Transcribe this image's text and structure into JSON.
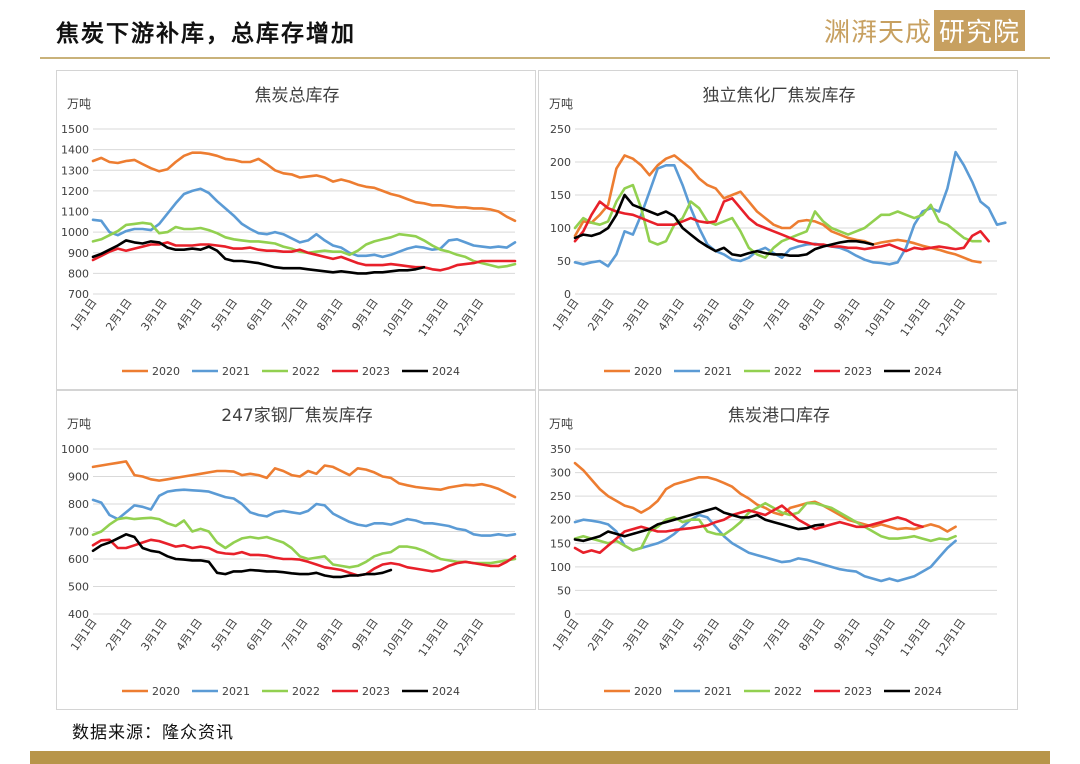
{
  "page": {
    "title": "焦炭下游补库，总库存增加",
    "logo_text": "渊湃天成",
    "logo_box": "研究院",
    "source": "数据来源：隆众资讯"
  },
  "series_colors": {
    "2020": "#ED7D31",
    "2021": "#5B9BD5",
    "2022": "#92D050",
    "2023": "#E8202A",
    "2024": "#000000"
  },
  "chart_data": [
    {
      "type": "line",
      "title": "焦炭总库存",
      "unit": "万吨",
      "ylim": [
        700,
        1500
      ],
      "yticks": [
        700,
        800,
        900,
        1000,
        1100,
        1200,
        1300,
        1400,
        1500
      ],
      "x_labels": [
        "1月1日",
        "2月1日",
        "3月1日",
        "4月1日",
        "5月1日",
        "6月1日",
        "7月1日",
        "8月1日",
        "9月1日",
        "10月1日",
        "11月1日",
        "12月1日"
      ],
      "series": [
        {
          "name": "2020",
          "values": [
            1345,
            1360,
            1340,
            1335,
            1345,
            1350,
            1330,
            1310,
            1295,
            1305,
            1340,
            1370,
            1385,
            1385,
            1380,
            1370,
            1355,
            1350,
            1340,
            1340,
            1355,
            1330,
            1300,
            1285,
            1280,
            1265,
            1270,
            1275,
            1265,
            1245,
            1255,
            1245,
            1230,
            1220,
            1215,
            1200,
            1185,
            1175,
            1160,
            1145,
            1140,
            1130,
            1130,
            1125,
            1120,
            1120,
            1115,
            1115,
            1110,
            1100,
            1075,
            1055
          ]
        },
        {
          "name": "2021",
          "values": [
            1060,
            1055,
            1000,
            985,
            1005,
            1015,
            1015,
            1010,
            1040,
            1090,
            1140,
            1185,
            1200,
            1210,
            1190,
            1150,
            1115,
            1080,
            1040,
            1015,
            995,
            990,
            1000,
            990,
            970,
            950,
            960,
            990,
            960,
            935,
            925,
            900,
            885,
            885,
            890,
            880,
            890,
            905,
            920,
            930,
            925,
            915,
            920,
            960,
            965,
            950,
            935,
            930,
            925,
            930,
            925,
            950
          ]
        },
        {
          "name": "2022",
          "values": [
            955,
            965,
            985,
            1005,
            1035,
            1040,
            1045,
            1040,
            995,
            1000,
            1025,
            1015,
            1015,
            1020,
            1010,
            995,
            975,
            965,
            960,
            955,
            955,
            950,
            945,
            930,
            920,
            905,
            900,
            905,
            910,
            905,
            905,
            890,
            910,
            940,
            955,
            965,
            975,
            990,
            985,
            980,
            960,
            935,
            915,
            905,
            890,
            880,
            860,
            850,
            840,
            830,
            835,
            845
          ]
        },
        {
          "name": "2023",
          "values": [
            865,
            885,
            905,
            920,
            910,
            920,
            930,
            940,
            940,
            950,
            935,
            935,
            935,
            940,
            940,
            935,
            930,
            920,
            920,
            925,
            915,
            910,
            910,
            905,
            905,
            915,
            900,
            890,
            880,
            870,
            880,
            865,
            850,
            840,
            840,
            840,
            845,
            840,
            835,
            830,
            830,
            820,
            815,
            825,
            840,
            845,
            850,
            860,
            860,
            860,
            860,
            860
          ]
        },
        {
          "name": "2024",
          "values": [
            880,
            895,
            915,
            935,
            960,
            950,
            945,
            955,
            950,
            925,
            915,
            915,
            920,
            915,
            930,
            910,
            870,
            860,
            860,
            855,
            850,
            840,
            830,
            825,
            825,
            825,
            820,
            815,
            810,
            805,
            810,
            805,
            800,
            800,
            805,
            805,
            810,
            815,
            815,
            820,
            830
          ]
        }
      ]
    },
    {
      "type": "line",
      "title": "独立焦化厂焦炭库存",
      "unit": "万吨",
      "ylim": [
        0,
        250
      ],
      "yticks": [
        0,
        50,
        100,
        150,
        200,
        250
      ],
      "x_labels": [
        "1月1日",
        "2月1日",
        "3月1日",
        "4月1日",
        "5月1日",
        "6月1日",
        "7月1日",
        "8月1日",
        "9月1日",
        "10月1日",
        "11月1日",
        "12月1日"
      ],
      "series": [
        {
          "name": "2020",
          "values": [
            88,
            110,
            108,
            120,
            135,
            190,
            210,
            205,
            195,
            180,
            195,
            205,
            210,
            200,
            190,
            175,
            165,
            160,
            145,
            150,
            155,
            140,
            125,
            115,
            105,
            100,
            100,
            110,
            112,
            110,
            105,
            95,
            90,
            85,
            82,
            80,
            75,
            78,
            80,
            82,
            80,
            77,
            73,
            70,
            67,
            63,
            60,
            55,
            50,
            48
          ]
        },
        {
          "name": "2021",
          "values": [
            48,
            45,
            48,
            50,
            42,
            60,
            95,
            90,
            120,
            155,
            190,
            195,
            195,
            165,
            130,
            100,
            75,
            65,
            60,
            52,
            50,
            55,
            65,
            70,
            62,
            55,
            68,
            72,
            75,
            76,
            74,
            72,
            70,
            65,
            58,
            52,
            48,
            47,
            45,
            48,
            70,
            105,
            125,
            130,
            125,
            160,
            215,
            195,
            170,
            140,
            130,
            105,
            108
          ]
        },
        {
          "name": "2022",
          "values": [
            100,
            115,
            108,
            105,
            110,
            140,
            160,
            165,
            130,
            80,
            75,
            80,
            105,
            115,
            140,
            130,
            110,
            105,
            110,
            115,
            95,
            70,
            60,
            55,
            70,
            80,
            85,
            90,
            95,
            125,
            110,
            100,
            95,
            90,
            95,
            100,
            110,
            120,
            120,
            125,
            120,
            115,
            120,
            135,
            110,
            105,
            95,
            85,
            80,
            80
          ]
        },
        {
          "name": "2023",
          "values": [
            80,
            95,
            120,
            140,
            130,
            125,
            122,
            120,
            115,
            110,
            105,
            105,
            105,
            110,
            115,
            110,
            108,
            110,
            140,
            145,
            130,
            115,
            105,
            100,
            95,
            90,
            85,
            80,
            78,
            75,
            75,
            72,
            72,
            70,
            70,
            68,
            70,
            72,
            75,
            70,
            65,
            70,
            68,
            70,
            72,
            70,
            68,
            70,
            88,
            95,
            80
          ]
        },
        {
          "name": "2024",
          "values": [
            85,
            90,
            88,
            92,
            100,
            120,
            150,
            135,
            130,
            125,
            120,
            125,
            118,
            100,
            90,
            80,
            72,
            65,
            70,
            60,
            58,
            62,
            65,
            62,
            60,
            60,
            58,
            58,
            60,
            68,
            72,
            75,
            78,
            80,
            80,
            78,
            75
          ]
        }
      ]
    },
    {
      "type": "line",
      "title": "247家钢厂焦炭库存",
      "unit": "万吨",
      "ylim": [
        400,
        1000
      ],
      "yticks": [
        400,
        500,
        600,
        700,
        800,
        900,
        1000
      ],
      "x_labels": [
        "1月1日",
        "2月1日",
        "3月1日",
        "4月1日",
        "5月1日",
        "6月1日",
        "7月1日",
        "8月1日",
        "9月1日",
        "10月1日",
        "11月1日",
        "12月1日"
      ],
      "series": [
        {
          "name": "2020",
          "values": [
            935,
            940,
            945,
            950,
            955,
            905,
            900,
            890,
            885,
            890,
            895,
            900,
            905,
            910,
            915,
            920,
            920,
            918,
            905,
            910,
            905,
            895,
            930,
            920,
            905,
            900,
            920,
            910,
            940,
            935,
            920,
            905,
            930,
            925,
            915,
            900,
            895,
            875,
            868,
            862,
            858,
            855,
            852,
            860,
            865,
            870,
            868,
            872,
            865,
            855,
            840,
            825
          ]
        },
        {
          "name": "2021",
          "values": [
            815,
            805,
            760,
            745,
            770,
            795,
            790,
            780,
            830,
            845,
            850,
            852,
            850,
            848,
            845,
            835,
            825,
            820,
            800,
            770,
            760,
            755,
            770,
            775,
            770,
            765,
            775,
            800,
            795,
            765,
            750,
            735,
            725,
            720,
            730,
            730,
            725,
            735,
            745,
            740,
            730,
            730,
            725,
            720,
            710,
            705,
            690,
            685,
            685,
            690,
            685,
            690
          ]
        },
        {
          "name": "2022",
          "values": [
            688,
            700,
            725,
            745,
            750,
            745,
            748,
            750,
            745,
            730,
            720,
            740,
            700,
            710,
            700,
            660,
            640,
            660,
            675,
            680,
            675,
            680,
            670,
            660,
            640,
            610,
            600,
            605,
            610,
            580,
            575,
            570,
            575,
            590,
            610,
            620,
            625,
            645,
            645,
            640,
            630,
            615,
            600,
            595,
            590,
            590,
            585,
            585,
            585,
            590,
            595,
            600
          ]
        },
        {
          "name": "2023",
          "values": [
            650,
            668,
            670,
            640,
            640,
            650,
            660,
            670,
            665,
            655,
            645,
            650,
            640,
            645,
            640,
            625,
            620,
            618,
            625,
            615,
            615,
            612,
            605,
            600,
            600,
            598,
            590,
            580,
            570,
            565,
            560,
            550,
            540,
            545,
            565,
            580,
            585,
            580,
            570,
            565,
            560,
            555,
            560,
            575,
            585,
            590,
            585,
            580,
            575,
            575,
            590,
            610
          ]
        },
        {
          "name": "2024",
          "values": [
            630,
            650,
            660,
            675,
            690,
            680,
            640,
            630,
            625,
            610,
            600,
            598,
            595,
            595,
            590,
            550,
            545,
            555,
            555,
            560,
            558,
            555,
            555,
            552,
            548,
            545,
            545,
            550,
            540,
            535,
            535,
            540,
            540,
            545,
            545,
            550,
            560
          ]
        }
      ]
    },
    {
      "type": "line",
      "title": "焦炭港口库存",
      "unit": "万吨",
      "ylim": [
        0,
        350
      ],
      "yticks": [
        0,
        50,
        100,
        150,
        200,
        250,
        300,
        350
      ],
      "x_labels": [
        "1月1日",
        "2月1日",
        "3月1日",
        "4月1日",
        "5月1日",
        "6月1日",
        "7月1日",
        "8月1日",
        "9月1日",
        "10月1日",
        "11月1日",
        "12月1日"
      ],
      "series": [
        {
          "name": "2020",
          "values": [
            320,
            305,
            285,
            265,
            250,
            240,
            230,
            225,
            215,
            225,
            240,
            265,
            275,
            280,
            285,
            290,
            290,
            285,
            278,
            270,
            255,
            245,
            232,
            225,
            215,
            210,
            225,
            230,
            235,
            238,
            230,
            220,
            210,
            200,
            195,
            190,
            185,
            190,
            185,
            180,
            182,
            180,
            185,
            190,
            185,
            175,
            185
          ]
        },
        {
          "name": "2021",
          "values": [
            195,
            200,
            198,
            195,
            190,
            175,
            145,
            135,
            140,
            145,
            150,
            158,
            170,
            185,
            200,
            210,
            205,
            185,
            165,
            150,
            140,
            130,
            125,
            120,
            115,
            110,
            112,
            118,
            115,
            110,
            105,
            100,
            95,
            92,
            90,
            80,
            75,
            70,
            75,
            70,
            75,
            80,
            90,
            100,
            120,
            140,
            155
          ]
        },
        {
          "name": "2022",
          "values": [
            160,
            165,
            160,
            155,
            150,
            155,
            145,
            135,
            140,
            175,
            185,
            200,
            205,
            195,
            200,
            200,
            175,
            170,
            168,
            180,
            195,
            215,
            225,
            235,
            225,
            215,
            210,
            215,
            235,
            235,
            230,
            225,
            215,
            205,
            195,
            185,
            175,
            165,
            160,
            160,
            162,
            165,
            160,
            155,
            160,
            158,
            165
          ]
        },
        {
          "name": "2023",
          "values": [
            140,
            130,
            135,
            130,
            145,
            160,
            175,
            180,
            185,
            180,
            175,
            175,
            178,
            180,
            182,
            185,
            188,
            195,
            200,
            210,
            215,
            220,
            215,
            210,
            220,
            230,
            215,
            200,
            190,
            180,
            185,
            190,
            195,
            190,
            185,
            185,
            190,
            195,
            200,
            205,
            200,
            190,
            185
          ]
        },
        {
          "name": "2024",
          "values": [
            158,
            155,
            160,
            165,
            175,
            170,
            165,
            170,
            175,
            180,
            190,
            195,
            200,
            205,
            210,
            215,
            220,
            225,
            215,
            210,
            205,
            205,
            210,
            200,
            195,
            190,
            185,
            180,
            182,
            188,
            190
          ]
        }
      ]
    }
  ]
}
